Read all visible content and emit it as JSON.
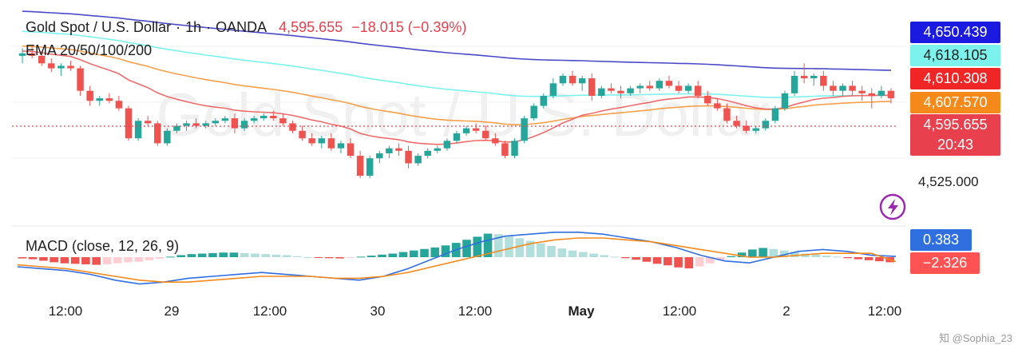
{
  "header": {
    "symbol": "Gold Spot / U.S. Dollar",
    "interval": "1h",
    "exchange": "OANDA",
    "last": "4,595.655",
    "change": "−18.015 (−0.39%)",
    "indicator": "EMA 20/50/100/200",
    "watermark": "Gold Spot / U.S. Dollar"
  },
  "price_tags": [
    {
      "label": "4,650.439",
      "color": "#1a1ae0"
    },
    {
      "label": "4,618.105",
      "color": "#7cf2ec",
      "text": "#1f1f1f"
    },
    {
      "label": "4,610.308",
      "color": "#f02626"
    },
    {
      "label": "4,607.570",
      "color": "#f58a1a"
    },
    {
      "label": "4,595.655",
      "color": "#e8404c"
    },
    {
      "label": "20:43",
      "color": "#e8404c"
    }
  ],
  "price_axis_label": "4,525.000",
  "macd": {
    "title": "MACD (close, 12, 26, 9)",
    "macd_value": "0.383",
    "signal_value": "−2.326",
    "macd_color": "#2f6fe0",
    "signal_color": "#ff5252"
  },
  "time_axis": [
    "12:00",
    "29",
    "12:00",
    "30",
    "12:00",
    "May",
    "12:00",
    "2",
    "12:00"
  ],
  "credit": "知 @Sophia_23",
  "chart_data": {
    "type": "candlestick",
    "title": "Gold Spot / U.S. Dollar",
    "price_range": [
      4495,
      4665
    ],
    "up_color": "#26a69a",
    "down_color": "#ef5350",
    "candles": [
      [
        4628,
        4634,
        4622,
        4630
      ],
      [
        4630,
        4636,
        4626,
        4628
      ],
      [
        4628,
        4632,
        4620,
        4622
      ],
      [
        4622,
        4626,
        4615,
        4618
      ],
      [
        4618,
        4622,
        4612,
        4620
      ],
      [
        4620,
        4624,
        4616,
        4618
      ],
      [
        4618,
        4620,
        4596,
        4600
      ],
      [
        4600,
        4604,
        4588,
        4592
      ],
      [
        4592,
        4596,
        4588,
        4594
      ],
      [
        4594,
        4598,
        4590,
        4592
      ],
      [
        4592,
        4596,
        4584,
        4586
      ],
      [
        4586,
        4588,
        4560,
        4562
      ],
      [
        4562,
        4578,
        4560,
        4576
      ],
      [
        4576,
        4580,
        4572,
        4574
      ],
      [
        4574,
        4576,
        4556,
        4558
      ],
      [
        4558,
        4570,
        4556,
        4568
      ],
      [
        4568,
        4574,
        4566,
        4572
      ],
      [
        4572,
        4576,
        4568,
        4574
      ],
      [
        4574,
        4578,
        4570,
        4572
      ],
      [
        4572,
        4576,
        4570,
        4574
      ],
      [
        4574,
        4578,
        4572,
        4576
      ],
      [
        4576,
        4580,
        4574,
        4578
      ],
      [
        4578,
        4582,
        4566,
        4570
      ],
      [
        4570,
        4578,
        4568,
        4576
      ],
      [
        4576,
        4580,
        4574,
        4578
      ],
      [
        4578,
        4582,
        4576,
        4580
      ],
      [
        4580,
        4584,
        4576,
        4578
      ],
      [
        4578,
        4582,
        4572,
        4574
      ],
      [
        4574,
        4576,
        4566,
        4568
      ],
      [
        4568,
        4572,
        4560,
        4562
      ],
      [
        4562,
        4566,
        4556,
        4558
      ],
      [
        4558,
        4564,
        4554,
        4562
      ],
      [
        4562,
        4566,
        4552,
        4554
      ],
      [
        4554,
        4560,
        4550,
        4558
      ],
      [
        4558,
        4562,
        4546,
        4548
      ],
      [
        4548,
        4552,
        4530,
        4532
      ],
      [
        4532,
        4548,
        4530,
        4546
      ],
      [
        4546,
        4552,
        4542,
        4550
      ],
      [
        4550,
        4556,
        4546,
        4554
      ],
      [
        4554,
        4558,
        4548,
        4552
      ],
      [
        4552,
        4556,
        4538,
        4542
      ],
      [
        4542,
        4550,
        4540,
        4548
      ],
      [
        4548,
        4554,
        4546,
        4552
      ],
      [
        4552,
        4556,
        4550,
        4554
      ],
      [
        4554,
        4562,
        4552,
        4560
      ],
      [
        4560,
        4568,
        4558,
        4566
      ],
      [
        4566,
        4572,
        4564,
        4570
      ],
      [
        4570,
        4574,
        4566,
        4568
      ],
      [
        4568,
        4572,
        4560,
        4562
      ],
      [
        4562,
        4566,
        4556,
        4558
      ],
      [
        4558,
        4560,
        4546,
        4548
      ],
      [
        4548,
        4562,
        4546,
        4560
      ],
      [
        4560,
        4580,
        4558,
        4578
      ],
      [
        4578,
        4590,
        4576,
        4588
      ],
      [
        4588,
        4598,
        4586,
        4596
      ],
      [
        4596,
        4610,
        4594,
        4606
      ],
      [
        4606,
        4614,
        4604,
        4612
      ],
      [
        4612,
        4616,
        4604,
        4606
      ],
      [
        4606,
        4612,
        4600,
        4610
      ],
      [
        4610,
        4614,
        4592,
        4596
      ],
      [
        4596,
        4604,
        4594,
        4602
      ],
      [
        4602,
        4606,
        4598,
        4600
      ],
      [
        4600,
        4604,
        4594,
        4598
      ],
      [
        4598,
        4604,
        4596,
        4602
      ],
      [
        4602,
        4606,
        4598,
        4604
      ],
      [
        4604,
        4608,
        4600,
        4602
      ],
      [
        4602,
        4610,
        4600,
        4608
      ],
      [
        4608,
        4612,
        4602,
        4604
      ],
      [
        4604,
        4608,
        4598,
        4600
      ],
      [
        4600,
        4606,
        4598,
        4604
      ],
      [
        4604,
        4608,
        4594,
        4596
      ],
      [
        4596,
        4600,
        4588,
        4590
      ],
      [
        4590,
        4594,
        4584,
        4586
      ],
      [
        4586,
        4590,
        4574,
        4576
      ],
      [
        4576,
        4580,
        4570,
        4572
      ],
      [
        4572,
        4576,
        4566,
        4568
      ],
      [
        4568,
        4572,
        4566,
        4570
      ],
      [
        4570,
        4578,
        4568,
        4576
      ],
      [
        4576,
        4588,
        4574,
        4586
      ],
      [
        4586,
        4600,
        4584,
        4598
      ],
      [
        4598,
        4616,
        4596,
        4612
      ],
      [
        4612,
        4622,
        4606,
        4610
      ],
      [
        4610,
        4614,
        4604,
        4612
      ],
      [
        4612,
        4616,
        4600,
        4604
      ],
      [
        4604,
        4608,
        4596,
        4600
      ],
      [
        4600,
        4606,
        4596,
        4604
      ],
      [
        4604,
        4608,
        4596,
        4600
      ],
      [
        4600,
        4604,
        4592,
        4598
      ],
      [
        4598,
        4602,
        4586,
        4596
      ],
      [
        4596,
        4604,
        4594,
        4600
      ],
      [
        4600,
        4602,
        4590,
        4594
      ]
    ],
    "ema_lines": [
      {
        "name": "EMA 200",
        "color": "#4a4ac8",
        "values": [
          4660,
          4650.439
        ]
      },
      {
        "name": "EMA 100",
        "color": "#7cf2ec",
        "values": [
          4645,
          4618.105
        ]
      },
      {
        "name": "EMA 50",
        "color": "#f5a04a",
        "values": [
          4634,
          4607.57
        ]
      },
      {
        "name": "EMA 20",
        "color": "#ef6c6c",
        "values": [
          4632,
          4610.308
        ]
      }
    ],
    "macd_hist": [
      -0.5,
      -0.8,
      -1.4,
      -2.0,
      -2.4,
      -2.6,
      -2.8,
      -3.0,
      -2.8,
      -2.4,
      -2.0,
      -1.8,
      -1.2,
      -0.6,
      0.2,
      0.8,
      1.2,
      1.4,
      1.6,
      1.8,
      1.8,
      1.6,
      1.4,
      1.2,
      1.0,
      0.8,
      0.4,
      0.0,
      -0.3,
      -0.4,
      -0.5,
      -0.3,
      0.2,
      0.6,
      1.0,
      1.4,
      2.0,
      2.6,
      3.2,
      3.8,
      4.6,
      5.6,
      6.8,
      8.0,
      9.2,
      9.0,
      8.4,
      7.4,
      6.4,
      5.4,
      4.4,
      3.4,
      2.6,
      2.0,
      1.4,
      0.8,
      0.2,
      -0.4,
      -1.0,
      -1.8,
      -2.6,
      -3.2,
      -4.0,
      -4.4,
      -3.6,
      -2.4,
      -1.0,
      0.4,
      1.8,
      3.0,
      3.6,
      3.2,
      2.6,
      2.0,
      1.4,
      1.0,
      0.6,
      0.2,
      -0.4,
      -0.8,
      -1.2,
      -1.6,
      -2.0
    ],
    "macd_line": [
      -5,
      -6,
      -7,
      -9,
      -12,
      -14,
      -13,
      -11,
      -10,
      -9,
      -8,
      -9,
      -10,
      -11,
      -12,
      -10,
      -6,
      -1,
      4,
      8,
      11,
      12,
      13,
      13,
      12,
      10,
      8,
      5,
      1,
      -2,
      -3,
      0,
      3,
      4,
      3,
      1,
      0.383
    ],
    "signal_line": [
      -4,
      -5,
      -6,
      -8,
      -10,
      -12,
      -13,
      -13,
      -12,
      -11,
      -10,
      -10,
      -10,
      -11,
      -11,
      -10,
      -8,
      -5,
      -2,
      1,
      4,
      7,
      9,
      10,
      10,
      9,
      8,
      6,
      4,
      2,
      0,
      0,
      1,
      2,
      2,
      2,
      -2.326
    ]
  }
}
